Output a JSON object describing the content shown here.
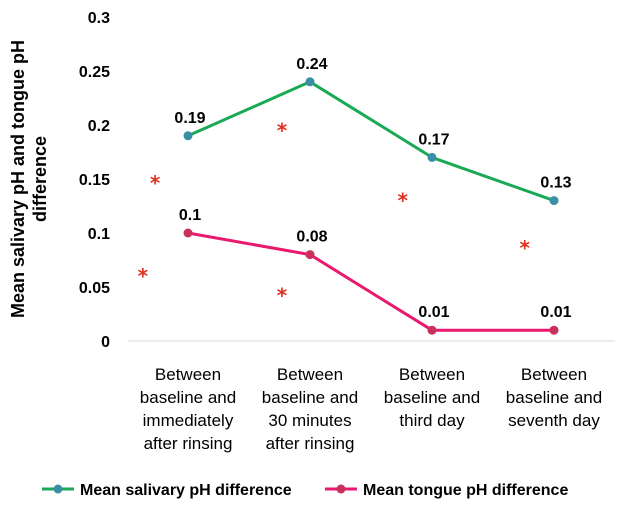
{
  "chart_data": {
    "type": "line",
    "ylabel": "Mean salivary pH and tongue pH difference",
    "ylabel_lines": [
      "Mean salivary pH and tongue pH",
      "difference"
    ],
    "xlabel": "",
    "ylim": [
      0,
      0.3
    ],
    "yticks": [
      0,
      0.05,
      0.1,
      0.15,
      0.2,
      0.25,
      0.3
    ],
    "ytick_labels": [
      "0",
      "0.05",
      "0.1",
      "0.15",
      "0.2",
      "0.25",
      "0.3"
    ],
    "categories": [
      "Between baseline and immediately after rinsing",
      "Between baseline and 30 minutes after rinsing",
      "Between baseline and third day",
      "Between baseline and seventh day"
    ],
    "category_lines": [
      [
        "Between",
        "baseline and",
        "immediately",
        "after rinsing"
      ],
      [
        "Between",
        "baseline and",
        "30 minutes",
        "after rinsing"
      ],
      [
        "Between",
        "baseline and",
        "third day"
      ],
      [
        "Between",
        "baseline and",
        "seventh day"
      ]
    ],
    "series": [
      {
        "name": "Mean salivary pH difference",
        "values": [
          0.19,
          0.24,
          0.17,
          0.13
        ],
        "labels": [
          "0.19",
          "0.24",
          "0.17",
          "0.13"
        ],
        "color": "#1aaa55",
        "marker_color": "#3a8fa6"
      },
      {
        "name": "Mean tongue pH difference",
        "values": [
          0.1,
          0.08,
          0.01,
          0.01
        ],
        "labels": [
          "0.1",
          "0.08",
          "0.01",
          "0.01"
        ],
        "color": "#e8196e",
        "marker_color": "#c8325a"
      }
    ],
    "annotations": {
      "symbol": "*",
      "color": "#e03020",
      "note": "significance markers",
      "points": [
        {
          "x": -0.27,
          "y": 0.147
        },
        {
          "x": -0.37,
          "y": 0.061
        },
        {
          "x": 0.77,
          "y": 0.196
        },
        {
          "x": 0.77,
          "y": 0.043
        },
        {
          "x": 1.76,
          "y": 0.131
        },
        {
          "x": 2.76,
          "y": 0.087
        }
      ]
    },
    "grid": false,
    "legend": "bottom"
  }
}
